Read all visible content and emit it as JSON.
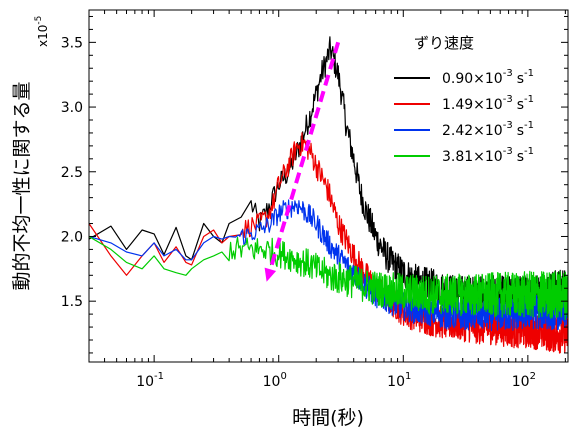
{
  "chart_data": {
    "type": "line",
    "xlabel": "時間(秒)",
    "ylabel": "動的不均一性に関する量",
    "y_multiplier": "x10",
    "y_multiplier_exp": "-5",
    "xscale": "log",
    "xlim": [
      0.03,
      210
    ],
    "ylim": [
      1.03,
      3.75
    ],
    "x_tick_labels": [
      {
        "base": "10",
        "exp": "-1",
        "value": 0.1
      },
      {
        "base": "10",
        "exp": "0",
        "value": 1
      },
      {
        "base": "10",
        "exp": "1",
        "value": 10
      },
      {
        "base": "10",
        "exp": "2",
        "value": 100
      }
    ],
    "y_tick_labels": [
      {
        "label": "1.5",
        "value": 1.5
      },
      {
        "label": "2.0",
        "value": 2.0
      },
      {
        "label": "2.5",
        "value": 2.5
      },
      {
        "label": "3.0",
        "value": 3.0
      },
      {
        "label": "3.5",
        "value": 3.5
      }
    ],
    "legend": {
      "title": "ずり速度",
      "placement": "top-right",
      "superscript_exp": "-3",
      "superscript_unit_exp": "-1"
    },
    "series": [
      {
        "name": "0.90×10-3 s-1",
        "label_main": "0.90×10",
        "color": "#000000",
        "x": [
          0.03,
          0.045,
          0.06,
          0.08,
          0.1,
          0.12,
          0.15,
          0.18,
          0.2,
          0.25,
          0.3,
          0.35,
          0.4,
          0.5,
          0.6,
          0.7,
          0.8,
          0.9,
          1.0,
          1.2,
          1.4,
          1.6,
          1.8,
          2.0,
          2.2,
          2.4,
          2.5,
          2.6,
          2.8,
          3.0,
          3.2,
          3.5,
          4.0,
          4.5,
          5.0,
          6.0,
          7.0,
          8.0,
          10,
          13,
          17,
          22,
          30,
          40,
          55,
          75,
          100,
          130,
          170,
          210
        ],
        "y": [
          1.98,
          2.08,
          1.9,
          2.05,
          2.02,
          1.86,
          2.07,
          1.85,
          1.82,
          2.1,
          2.0,
          1.95,
          2.1,
          2.15,
          2.25,
          2.1,
          2.2,
          2.3,
          2.4,
          2.5,
          2.65,
          2.8,
          2.95,
          3.1,
          3.25,
          3.35,
          3.4,
          3.45,
          3.35,
          3.25,
          3.1,
          2.85,
          2.6,
          2.35,
          2.2,
          2.0,
          1.88,
          1.8,
          1.72,
          1.65,
          1.62,
          1.58,
          1.56,
          1.55,
          1.55,
          1.54,
          1.55,
          1.56,
          1.58,
          1.6
        ],
        "noise": 0.14,
        "dense_from": 0.6
      },
      {
        "name": "1.49×10-3 s-1",
        "label_main": "1.49×10",
        "color": "#ee0000",
        "x": [
          0.03,
          0.045,
          0.06,
          0.08,
          0.1,
          0.12,
          0.15,
          0.18,
          0.2,
          0.25,
          0.3,
          0.35,
          0.4,
          0.5,
          0.6,
          0.7,
          0.8,
          0.9,
          1.0,
          1.2,
          1.4,
          1.6,
          1.8,
          2.0,
          2.5,
          3.0,
          4.0,
          5.0,
          6.0,
          8.0,
          10,
          13,
          17,
          22,
          30,
          40,
          55,
          75,
          100,
          130,
          170,
          210
        ],
        "y": [
          2.1,
          1.85,
          1.7,
          1.85,
          1.95,
          1.8,
          1.92,
          1.8,
          1.78,
          2.0,
          2.05,
          1.95,
          2.0,
          2.05,
          2.08,
          2.1,
          2.15,
          2.25,
          2.4,
          2.55,
          2.7,
          2.72,
          2.65,
          2.55,
          2.35,
          2.1,
          1.85,
          1.7,
          1.6,
          1.5,
          1.42,
          1.38,
          1.35,
          1.33,
          1.32,
          1.3,
          1.3,
          1.28,
          1.28,
          1.27,
          1.25,
          1.25
        ],
        "noise": 0.13,
        "dense_from": 0.5
      },
      {
        "name": "2.42×10-3 s-1",
        "label_main": "2.42×10",
        "color": "#0033ee",
        "x": [
          0.03,
          0.045,
          0.06,
          0.08,
          0.1,
          0.12,
          0.15,
          0.18,
          0.2,
          0.25,
          0.3,
          0.35,
          0.4,
          0.5,
          0.6,
          0.7,
          0.8,
          0.9,
          1.0,
          1.2,
          1.4,
          1.6,
          1.8,
          2.0,
          2.5,
          3.0,
          4.0,
          5.0,
          6.0,
          8.0,
          10,
          13,
          17,
          22,
          30,
          40,
          55,
          75,
          100,
          130,
          170,
          210
        ],
        "y": [
          2.0,
          1.95,
          1.88,
          1.85,
          1.95,
          1.85,
          1.9,
          1.82,
          1.82,
          1.95,
          2.0,
          1.98,
          2.0,
          2.0,
          2.02,
          2.05,
          2.08,
          2.12,
          2.18,
          2.22,
          2.25,
          2.2,
          2.15,
          2.1,
          1.95,
          1.85,
          1.72,
          1.62,
          1.55,
          1.5,
          1.46,
          1.43,
          1.42,
          1.4,
          1.4,
          1.4,
          1.4,
          1.4,
          1.42,
          1.42,
          1.42,
          1.42
        ],
        "noise": 0.12,
        "dense_from": 0.45
      },
      {
        "name": "3.81×10-3 s-1",
        "label_main": "3.81×10",
        "color": "#00cc00",
        "x": [
          0.03,
          0.045,
          0.06,
          0.08,
          0.1,
          0.12,
          0.15,
          0.18,
          0.2,
          0.25,
          0.3,
          0.35,
          0.4,
          0.5,
          0.6,
          0.7,
          0.8,
          0.9,
          1.0,
          1.2,
          1.4,
          1.6,
          1.8,
          2.0,
          2.5,
          3.0,
          4.0,
          5.0,
          6.0,
          8.0,
          10,
          13,
          17,
          22,
          30,
          40,
          55,
          75,
          100,
          130,
          170,
          210
        ],
        "y": [
          2.0,
          1.9,
          1.8,
          1.75,
          1.85,
          1.75,
          1.72,
          1.7,
          1.75,
          1.82,
          1.85,
          1.88,
          1.9,
          1.9,
          1.9,
          1.9,
          1.9,
          1.88,
          1.87,
          1.85,
          1.82,
          1.8,
          1.78,
          1.75,
          1.7,
          1.68,
          1.65,
          1.62,
          1.6,
          1.58,
          1.57,
          1.56,
          1.55,
          1.55,
          1.55,
          1.55,
          1.55,
          1.55,
          1.55,
          1.55,
          1.55,
          1.55
        ],
        "noise": 0.16,
        "dense_from": 0.4
      }
    ],
    "annotation_arrow": {
      "color": "#ff00ff",
      "from": {
        "x": 3.0,
        "y": 3.5
      },
      "to": {
        "x": 0.8,
        "y": 1.65
      }
    }
  }
}
